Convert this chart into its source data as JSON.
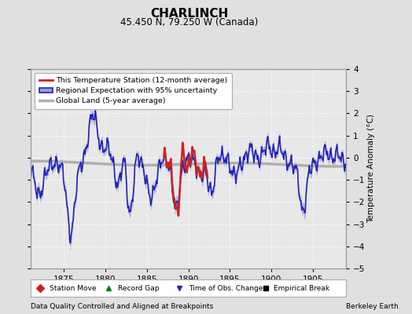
{
  "title": "CHARLINCH",
  "subtitle": "45.450 N, 79.250 W (Canada)",
  "ylabel": "Temperature Anomaly (°C)",
  "xlabel_note": "Data Quality Controlled and Aligned at Breakpoints",
  "source_note": "Berkeley Earth",
  "xlim": [
    1871,
    1909
  ],
  "ylim": [
    -5,
    4
  ],
  "yticks": [
    -5,
    -4,
    -3,
    -2,
    -1,
    0,
    1,
    2,
    3,
    4
  ],
  "xticks": [
    1875,
    1880,
    1885,
    1890,
    1895,
    1900,
    1905
  ],
  "bg_color": "#e0e0e0",
  "plot_bg_color": "#e8e8e8",
  "regional_color": "#2222bb",
  "regional_fill_color": "#9999dd",
  "station_color": "#cc2222",
  "global_color": "#b0b0b0",
  "global_lw": 2.5,
  "station_lw": 1.8,
  "regional_lw": 1.2
}
